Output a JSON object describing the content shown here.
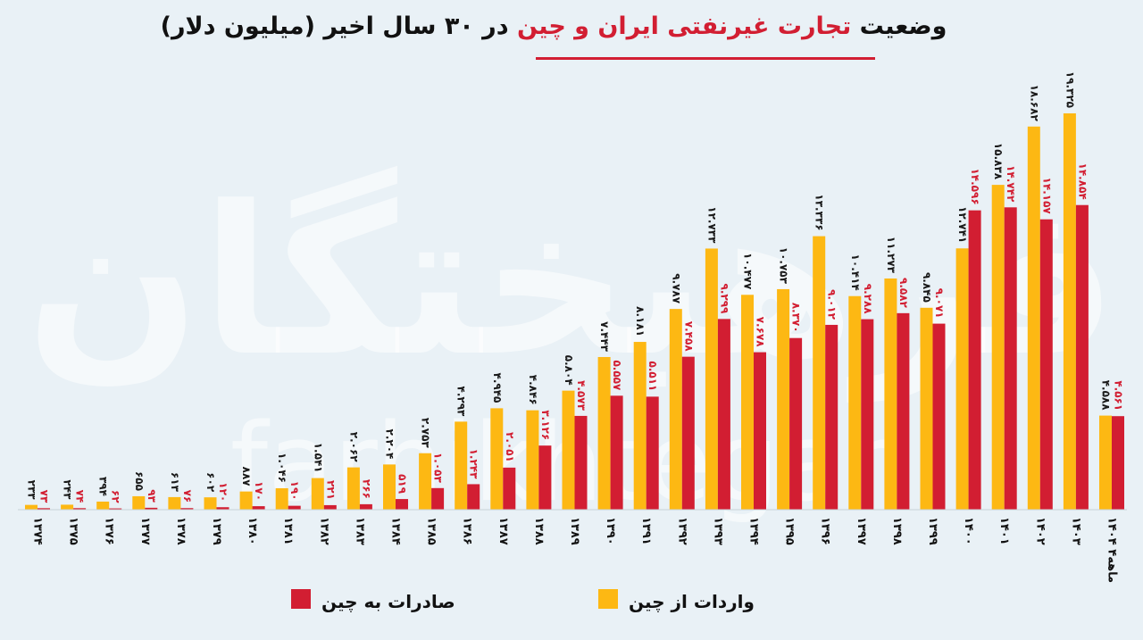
{
  "title": {
    "part1": "وضعیت",
    "highlight": "تجارت غیرنفتی ایران و چین",
    "part2": "در ۳۰ سال اخیر (میلیون دلار)"
  },
  "watermark": [
    "فرهیختگان",
    "farhikhtegan"
  ],
  "colors": {
    "imports": "#fdb813",
    "exports": "#d21e32",
    "background": "#e9f1f6"
  },
  "chart_data": {
    "type": "bar",
    "categories": [
      "۱۳۷۴",
      "۱۳۷۵",
      "۱۳۷۶",
      "۱۳۷۷",
      "۱۳۷۸",
      "۱۳۷۹",
      "۱۳۸۰",
      "۱۳۸۱",
      "۱۳۸۲",
      "۱۳۸۳",
      "۱۳۸۴",
      "۱۳۸۵",
      "۱۳۸۶",
      "۱۳۸۷",
      "۱۳۸۸",
      "۱۳۸۹",
      "۱۳۹۰",
      "۱۳۹۱",
      "۱۳۹۲",
      "۱۳۹۳",
      "۱۳۹۴",
      "۱۳۹۵",
      "۱۳۹۶",
      "۱۳۹۷",
      "۱۳۹۸",
      "۱۳۹۹",
      "۱۴۰۰",
      "۱۴۰۱",
      "۱۴۰۲",
      "۱۴۰۳",
      "۱۴۰۴ ۴ماهه"
    ],
    "series": [
      {
        "name": "واردات از چین",
        "values": [
          233,
          243,
          394,
          655,
          613,
          602,
          887,
          1046,
          1541,
          2062,
          2204,
          2753,
          4293,
          4945,
          4846,
          5804,
          7443,
          8181,
          9787,
          12733,
          10477,
          10753,
          13336,
          10414,
          11273,
          9845,
          12741,
          15838,
          18682,
          19325,
          4588
        ],
        "labels": [
          "۲۳۳",
          "۲۴۳",
          "۳۹۴",
          "۶۵۵",
          "۶۱۳",
          "۶۰۲",
          "۸۸۷",
          "۱.۰۴۶",
          "۱.۵۴۱",
          "۲.۰۶۲",
          "۲.۲۰۴",
          "۲.۷۵۳",
          "۴.۲۹۳",
          "۴.۹۴۵",
          "۴.۸۴۶",
          "۵.۸۰۴",
          "۷.۴۴۳",
          "۸.۱۸۱",
          "۹.۷۸۷",
          "۱۲.۷۳۳",
          "۱۰.۴۷۷",
          "۱۰.۷۵۳",
          "۱۳.۳۳۶",
          "۱۰.۴۱۴",
          "۱۱.۲۷۳",
          "۹.۸۴۵",
          "۱۲.۷۴۱",
          "۱۵.۸۳۸",
          "۱۸.۶۸۲",
          "۱۹.۳۲۵",
          "۴.۵۸۸"
        ]
      },
      {
        "name": "صادرات به چین",
        "values": [
          73,
          74,
          62,
          93,
          76,
          120,
          170,
          190,
          221,
          266,
          519,
          1053,
          1243,
          2051,
          3126,
          4573,
          5557,
          5511,
          7458,
          9299,
          7678,
          8370,
          9012,
          9288,
          9582,
          9071,
          14596,
          14742,
          14157,
          14854,
          4561
        ],
        "labels": [
          "۷۳",
          "۷۴",
          "۶۲",
          "۹۳",
          "۷۶",
          "۱۲۰",
          "۱۷۰",
          "۱۹۰",
          "۲۲۱",
          "۲۶۶",
          "۵۱۹",
          "۱.۰۵۳",
          "۱.۲۴۳",
          "۲.۰۵۱",
          "۳.۱۲۶",
          "۴.۵۷۳",
          "۵.۵۵۷",
          "۵.۵۱۱",
          "۷.۴۵۸",
          "۹.۲۹۹",
          "۷.۶۷۸",
          "۸.۳۷۰",
          "۹.۰۱۲",
          "۹.۲۸۸",
          "۹.۵۸۲",
          "۹.۰۷۱",
          "۱۴.۵۹۶",
          "۱۴.۷۴۲",
          "۱۴.۱۵۷",
          "۱۴.۸۵۴",
          "۴.۵۶۱"
        ]
      }
    ],
    "ylim": [
      0,
      19325
    ],
    "legend": [
      "واردات از چین",
      "صادرات به چین"
    ],
    "legend_position": "bottom"
  }
}
